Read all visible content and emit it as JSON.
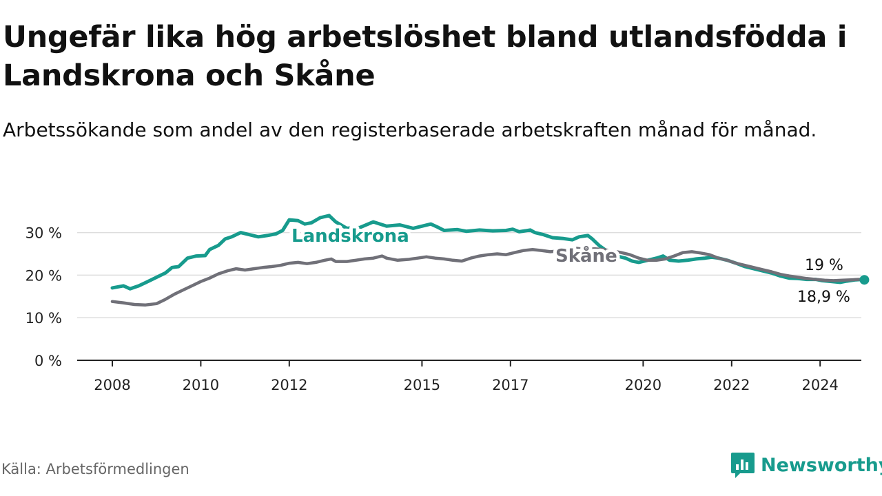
{
  "title": "Ungefär lika hög arbetslöshet bland utlandsfödda i Landskrona och Skåne",
  "subtitle": "Arbetssökande som andel av den registerbaserade arbetskraften månad för månad.",
  "source": "Källa: Arbetsförmedlingen",
  "brand": "Newsworthy",
  "colors": {
    "landskrona": "#179b8d",
    "skane": "#707078",
    "grid": "#dddddd",
    "axis": "#222222"
  },
  "chart_data": {
    "type": "line",
    "x_ticks": [
      2008,
      2010,
      2012,
      2015,
      2017,
      2020,
      2022,
      2024
    ],
    "y_ticks": [
      0,
      10,
      20,
      30
    ],
    "y_tick_labels": [
      "0 %",
      "10 %",
      "20 %",
      "30 %"
    ],
    "ylim": [
      0,
      36
    ],
    "xlim": [
      2007.5,
      2025.0
    ],
    "series": [
      {
        "name": "Landskrona",
        "label": "Landskrona",
        "end_label": "18,9 %",
        "points": [
          [
            2008.0,
            17.0
          ],
          [
            2008.25,
            17.5
          ],
          [
            2008.4,
            16.8
          ],
          [
            2008.6,
            17.5
          ],
          [
            2008.8,
            18.5
          ],
          [
            2009.0,
            19.5
          ],
          [
            2009.2,
            20.5
          ],
          [
            2009.35,
            21.8
          ],
          [
            2009.5,
            22.0
          ],
          [
            2009.7,
            24.0
          ],
          [
            2009.9,
            24.5
          ],
          [
            2010.1,
            24.6
          ],
          [
            2010.2,
            26.0
          ],
          [
            2010.4,
            27.0
          ],
          [
            2010.55,
            28.5
          ],
          [
            2010.7,
            29.0
          ],
          [
            2010.9,
            30.0
          ],
          [
            2011.1,
            29.5
          ],
          [
            2011.3,
            29.0
          ],
          [
            2011.5,
            29.3
          ],
          [
            2011.7,
            29.7
          ],
          [
            2011.85,
            30.5
          ],
          [
            2012.0,
            33.0
          ],
          [
            2012.2,
            32.8
          ],
          [
            2012.35,
            32.0
          ],
          [
            2012.5,
            32.3
          ],
          [
            2012.7,
            33.5
          ],
          [
            2012.9,
            34.0
          ],
          [
            2013.05,
            32.5
          ],
          [
            2013.3,
            31.0
          ],
          [
            2013.6,
            31.2
          ],
          [
            2013.9,
            32.5
          ],
          [
            2014.2,
            31.5
          ],
          [
            2014.5,
            31.8
          ],
          [
            2014.8,
            31.0
          ],
          [
            2015.0,
            31.5
          ],
          [
            2015.2,
            32.0
          ],
          [
            2015.35,
            31.3
          ],
          [
            2015.5,
            30.5
          ],
          [
            2015.8,
            30.7
          ],
          [
            2016.0,
            30.3
          ],
          [
            2016.3,
            30.6
          ],
          [
            2016.6,
            30.4
          ],
          [
            2016.9,
            30.5
          ],
          [
            2017.05,
            30.8
          ],
          [
            2017.2,
            30.2
          ],
          [
            2017.45,
            30.6
          ],
          [
            2017.55,
            30.0
          ],
          [
            2017.75,
            29.5
          ],
          [
            2017.95,
            28.8
          ],
          [
            2018.2,
            28.6
          ],
          [
            2018.4,
            28.3
          ],
          [
            2018.55,
            29.0
          ],
          [
            2018.75,
            29.3
          ],
          [
            2018.85,
            28.5
          ],
          [
            2019.0,
            27.0
          ],
          [
            2019.2,
            25.5
          ],
          [
            2019.4,
            24.5
          ],
          [
            2019.6,
            24.0
          ],
          [
            2019.75,
            23.3
          ],
          [
            2019.9,
            23.0
          ],
          [
            2020.1,
            23.5
          ],
          [
            2020.3,
            24.0
          ],
          [
            2020.45,
            24.5
          ],
          [
            2020.6,
            23.5
          ],
          [
            2020.8,
            23.3
          ],
          [
            2021.0,
            23.5
          ],
          [
            2021.2,
            23.8
          ],
          [
            2021.4,
            24.0
          ],
          [
            2021.55,
            24.2
          ],
          [
            2021.7,
            24.0
          ],
          [
            2021.9,
            23.5
          ],
          [
            2022.1,
            22.8
          ],
          [
            2022.3,
            22.0
          ],
          [
            2022.5,
            21.5
          ],
          [
            2022.7,
            21.0
          ],
          [
            2022.9,
            20.5
          ],
          [
            2023.1,
            19.8
          ],
          [
            2023.3,
            19.3
          ],
          [
            2023.5,
            19.2
          ],
          [
            2023.7,
            19.0
          ],
          [
            2023.9,
            19.0
          ],
          [
            2024.05,
            18.7
          ],
          [
            2024.25,
            18.5
          ],
          [
            2024.45,
            18.3
          ],
          [
            2024.6,
            18.6
          ],
          [
            2024.8,
            18.9
          ],
          [
            2024.95,
            19.0
          ],
          [
            2025.0,
            18.9
          ]
        ]
      },
      {
        "name": "Skåne",
        "label": "Skåne",
        "end_label": "19 %",
        "points": [
          [
            2008.0,
            13.8
          ],
          [
            2008.25,
            13.5
          ],
          [
            2008.5,
            13.1
          ],
          [
            2008.75,
            13.0
          ],
          [
            2009.0,
            13.3
          ],
          [
            2009.2,
            14.3
          ],
          [
            2009.4,
            15.5
          ],
          [
            2009.6,
            16.5
          ],
          [
            2009.8,
            17.5
          ],
          [
            2010.0,
            18.5
          ],
          [
            2010.2,
            19.3
          ],
          [
            2010.4,
            20.3
          ],
          [
            2010.6,
            21.0
          ],
          [
            2010.8,
            21.5
          ],
          [
            2011.0,
            21.2
          ],
          [
            2011.2,
            21.5
          ],
          [
            2011.4,
            21.8
          ],
          [
            2011.6,
            22.0
          ],
          [
            2011.8,
            22.3
          ],
          [
            2012.0,
            22.8
          ],
          [
            2012.2,
            23.0
          ],
          [
            2012.4,
            22.7
          ],
          [
            2012.6,
            23.0
          ],
          [
            2012.8,
            23.5
          ],
          [
            2012.95,
            23.8
          ],
          [
            2013.05,
            23.2
          ],
          [
            2013.3,
            23.2
          ],
          [
            2013.5,
            23.5
          ],
          [
            2013.7,
            23.8
          ],
          [
            2013.9,
            24.0
          ],
          [
            2014.1,
            24.5
          ],
          [
            2014.2,
            24.0
          ],
          [
            2014.45,
            23.5
          ],
          [
            2014.7,
            23.7
          ],
          [
            2014.9,
            24.0
          ],
          [
            2015.1,
            24.3
          ],
          [
            2015.3,
            24.0
          ],
          [
            2015.5,
            23.8
          ],
          [
            2015.7,
            23.5
          ],
          [
            2015.9,
            23.3
          ],
          [
            2016.1,
            24.0
          ],
          [
            2016.3,
            24.5
          ],
          [
            2016.5,
            24.8
          ],
          [
            2016.7,
            25.0
          ],
          [
            2016.9,
            24.8
          ],
          [
            2017.1,
            25.3
          ],
          [
            2017.3,
            25.8
          ],
          [
            2017.5,
            26.0
          ],
          [
            2017.7,
            25.8
          ],
          [
            2017.9,
            25.5
          ],
          [
            2018.1,
            25.7
          ],
          [
            2018.3,
            26.0
          ],
          [
            2018.5,
            26.3
          ],
          [
            2018.7,
            26.0
          ],
          [
            2018.9,
            26.2
          ],
          [
            2019.1,
            26.0
          ],
          [
            2019.3,
            25.7
          ],
          [
            2019.5,
            25.3
          ],
          [
            2019.7,
            24.8
          ],
          [
            2019.9,
            24.0
          ],
          [
            2020.1,
            23.5
          ],
          [
            2020.3,
            23.5
          ],
          [
            2020.5,
            23.8
          ],
          [
            2020.7,
            24.5
          ],
          [
            2020.9,
            25.3
          ],
          [
            2021.1,
            25.5
          ],
          [
            2021.3,
            25.2
          ],
          [
            2021.5,
            24.8
          ],
          [
            2021.7,
            24.0
          ],
          [
            2021.9,
            23.5
          ],
          [
            2022.1,
            22.8
          ],
          [
            2022.3,
            22.3
          ],
          [
            2022.5,
            21.8
          ],
          [
            2022.7,
            21.3
          ],
          [
            2022.9,
            20.8
          ],
          [
            2023.1,
            20.2
          ],
          [
            2023.3,
            19.8
          ],
          [
            2023.5,
            19.5
          ],
          [
            2023.7,
            19.2
          ],
          [
            2023.9,
            19.0
          ],
          [
            2024.1,
            18.8
          ],
          [
            2024.3,
            18.7
          ],
          [
            2024.5,
            18.8
          ],
          [
            2024.7,
            18.9
          ],
          [
            2024.85,
            19.0
          ],
          [
            2025.0,
            19.0
          ]
        ]
      }
    ]
  }
}
